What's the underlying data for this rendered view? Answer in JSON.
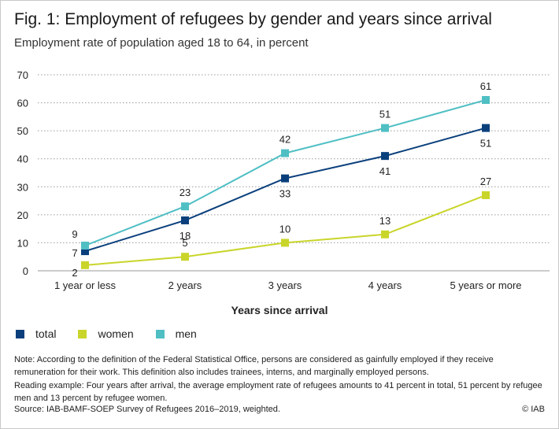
{
  "title": "Fig. 1: Employment of refugees by gender and years since arrival",
  "subtitle": "Employment rate of population aged 18 to 64, in percent",
  "chart_data": {
    "type": "line",
    "categories": [
      "1 year or less",
      "2 years",
      "3 years",
      "4 years",
      "5 years or more"
    ],
    "series": [
      {
        "name": "total",
        "color": "#0a3f7c",
        "values": [
          7,
          18,
          33,
          41,
          51
        ]
      },
      {
        "name": "women",
        "color": "#c9d52a",
        "values": [
          2,
          5,
          10,
          13,
          27
        ]
      },
      {
        "name": "men",
        "color": "#4fbfc4",
        "values": [
          9,
          23,
          42,
          51,
          61
        ]
      }
    ],
    "xlabel": "Years since arrival",
    "ylabel": "",
    "ylim": [
      0,
      70
    ],
    "yticks": [
      0,
      10,
      20,
      30,
      40,
      50,
      60,
      70
    ],
    "grid": "horizontal dotted",
    "legend": "bottom-left"
  },
  "notes": {
    "note": "Note: According to the definition of the Federal Statistical Office, persons are considered as gainfully employed if they receive remuneration for their work. This definition also includes trainees, interns, and marginally employed persons.",
    "reading_example": "Reading example: Four years after arrival, the average employment rate of refugees amounts to 41 percent in total, 51 percent by refugee men and 13 percent by refugee women.",
    "source": "Source: IAB-BAMF-SOEP Survey of Refugees 2016–2019, weighted.",
    "copyright": "© IAB"
  }
}
